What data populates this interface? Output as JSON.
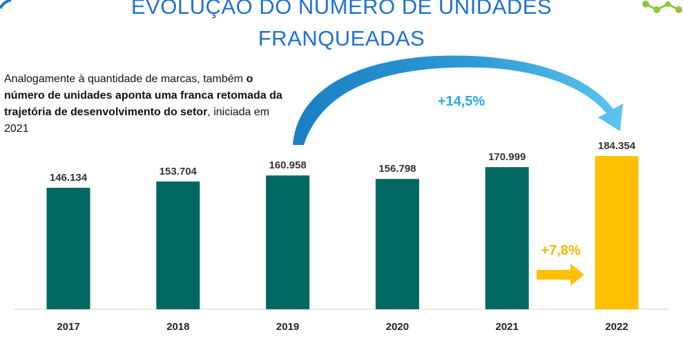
{
  "title_line1": "EVOLUÇÃO DO NÚMERO DE UNIDADES",
  "title_line2": "FRANQUEADAS",
  "intro": {
    "part1": "Analogamente à quantidade de marcas, também ",
    "part2_bold": "o número de unidades aponta uma franca retomada da trajetória de desenvolvimento do setor",
    "part3": ", iniciada em 2021"
  },
  "annotations": {
    "growth_2019_2022": "+14,5%",
    "growth_2021_2022": "+7,8%"
  },
  "colors": {
    "title": "#1f6fd6",
    "bar": "#006861",
    "highlight_bar": "#ffc000",
    "arc": "#2e9ad6",
    "growth_label_blue": "#29abe2",
    "growth_label_yellow": "#f5b800",
    "logo_green": "#8dc63f"
  },
  "chart_data": {
    "type": "bar",
    "categories": [
      "2017",
      "2018",
      "2019",
      "2020",
      "2021",
      "2022"
    ],
    "values": [
      146134,
      153704,
      160958,
      156798,
      170999,
      184354
    ],
    "value_labels": [
      "146.134",
      "153.704",
      "160.958",
      "156.798",
      "170.999",
      "184.354"
    ],
    "highlight_category": "2022",
    "title": "",
    "xlabel": "",
    "ylabel": "",
    "grid": false,
    "legend": "none"
  }
}
